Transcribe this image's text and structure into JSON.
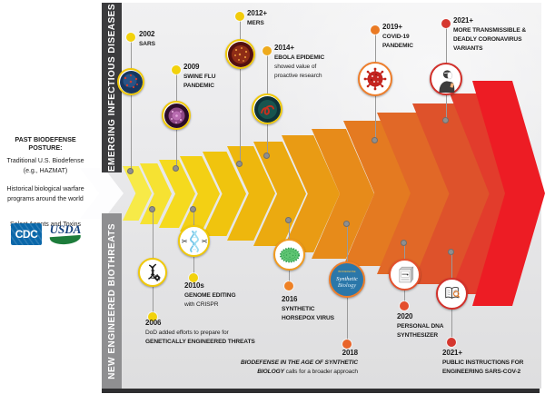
{
  "left_panel": {
    "heading": "PAST BIODEFENSE POSTURE:",
    "sub1": "Traditional U.S. Biodefense",
    "sub2": "(e.g., HAZMAT)",
    "para2a": "Historical biological warfare",
    "para2b": "programs around the world",
    "para3": "Select Agents and Toxins",
    "cdc_logo": "CDC",
    "usda_logo": "USDA"
  },
  "axes": {
    "top": "EMERGING INFECTIOUS DISEASES",
    "bottom": "NEW ENGINEERED BIOTHREATS"
  },
  "chevron_colors": [
    "#f7ea48",
    "#f6e232",
    "#f5da1e",
    "#f3d014",
    "#f0c40e",
    "#eeb70d",
    "#ebaa10",
    "#e99b14",
    "#e78b1a",
    "#e47a21",
    "#e16827",
    "#de522b",
    "#e23c2c",
    "#ed1c24"
  ],
  "white_tail_color": "#fdfdfe",
  "events_top": [
    {
      "year": "2002",
      "l1": "SARS",
      "dot_color": "#f2d20c",
      "icon": "sars-virus"
    },
    {
      "year": "2009",
      "l1": "SWINE FLU",
      "l2": "PANDEMIC",
      "dot_color": "#f2d20c",
      "icon": "swine-flu-virus"
    },
    {
      "year": "2012+",
      "l1": "MERS",
      "dot_color": "#f2cb0a",
      "icon": "mers-virus"
    },
    {
      "year": "2014+",
      "l1": "EBOLA EPIDEMIC",
      "l2": "showed value of",
      "l3": "proactive research",
      "dot_color": "#eeaa1c",
      "icon": "ebola-virus"
    },
    {
      "year": "2019+",
      "l1": "COVID-19",
      "l2": "PANDEMIC",
      "dot_color": "#ea7a24",
      "icon": "coronavirus"
    },
    {
      "year": "2021+",
      "l1": "MORE TRANSMISSIBLE &",
      "l2": "DEADLY CORONAVIRUS",
      "l3": "VARIANTS",
      "dot_color": "#d5372f",
      "icon": "masked-person"
    }
  ],
  "events_bottom": [
    {
      "year": "2006",
      "l1": "DoD added efforts to prepare for",
      "l2": "GENETICALLY ENGINEERED THREATS",
      "dot_color": "#f2d20c",
      "icon": "dna-gear"
    },
    {
      "year": "2010s",
      "l1": "GENOME EDITING",
      "l2": "with CRISPR",
      "dot_color": "#f2d20c",
      "icon": "crispr-dna-scissors"
    },
    {
      "year": "2016",
      "l1": "SYNTHETIC",
      "l2": "HORSEPOX VIRUS",
      "dot_color": "#ee8125",
      "icon": "horsepox-virus"
    },
    {
      "year": "2018",
      "l1": "BIODEFENSE IN THE AGE OF SYNTHETIC",
      "l2_em": "BIOLOGY",
      "l2_rest": " calls for a broader approach",
      "dot_color": "#e8642a",
      "icon": "synthetic-biology-book"
    },
    {
      "year": "2020",
      "l1": "PERSONAL DNA",
      "l2": "SYNTHESIZER",
      "dot_color": "#e44f2e",
      "icon": "dna-synthesizer"
    },
    {
      "year": "2021+",
      "l1": "PUBLIC INSTRUCTIONS FOR",
      "l2": "ENGINEERING SARS-COV-2",
      "dot_color": "#d5372f",
      "icon": "open-book-magnifier"
    }
  ]
}
